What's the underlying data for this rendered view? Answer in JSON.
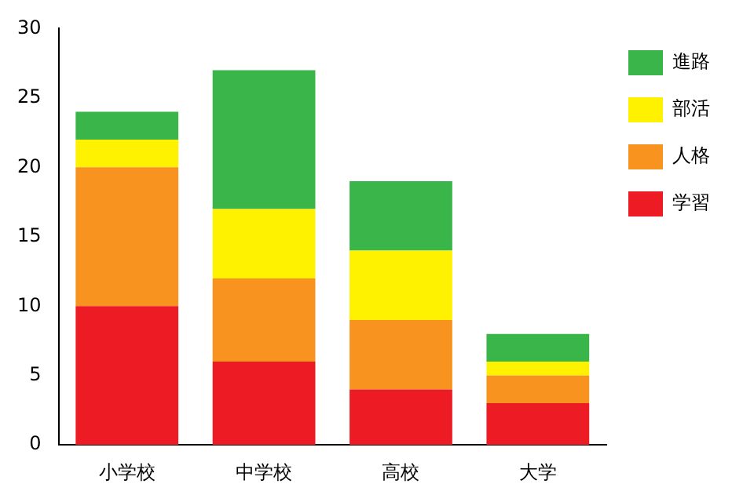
{
  "chart_data": {
    "type": "bar",
    "stacked": true,
    "categories": [
      "小学校",
      "中学校",
      "高校",
      "大学"
    ],
    "series": [
      {
        "name": "学習",
        "color": "#ed1c24",
        "values": [
          10,
          6,
          4,
          3
        ]
      },
      {
        "name": "人格",
        "color": "#f7931e",
        "values": [
          10,
          6,
          5,
          2
        ]
      },
      {
        "name": "部活",
        "color": "#fff200",
        "values": [
          2,
          5,
          5,
          1
        ]
      },
      {
        "name": "進路",
        "color": "#39b54a",
        "values": [
          2,
          10,
          5,
          2
        ]
      }
    ],
    "ylim": [
      0,
      30
    ],
    "yticks": [
      0,
      5,
      10,
      15,
      20,
      25,
      30
    ],
    "grid": false,
    "legend": "top right"
  }
}
